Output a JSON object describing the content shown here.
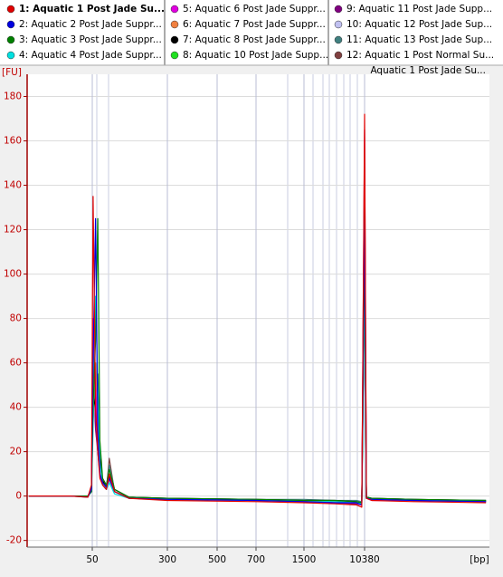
{
  "chart_data": {
    "type": "line",
    "sample_label": "Aquatic 1 Post Jade Su...",
    "y_label": "[FU]",
    "x_label": "[bp]",
    "x": [
      11,
      30,
      45,
      49,
      51,
      54,
      57,
      60,
      64,
      70,
      75,
      85,
      120,
      300,
      700,
      1500,
      4000,
      8000,
      9500,
      10380,
      11000,
      13000,
      50000,
      500000
    ],
    "xticks": [
      50,
      300,
      500,
      700,
      1500,
      10380
    ],
    "ylim": [
      -23,
      190
    ],
    "yticks": [
      -20,
      0,
      20,
      40,
      60,
      80,
      100,
      120,
      140,
      160,
      180
    ],
    "grid": true,
    "series": [
      {
        "name": "1: Aquatic 1 Post Jade Su...",
        "color": "#e00000",
        "values": [
          0,
          0,
          -0.5,
          5,
          135,
          40,
          20,
          8,
          5,
          3,
          10,
          2,
          -1,
          -2,
          -2.5,
          -3,
          -3.5,
          -4,
          -5,
          172,
          -1,
          -2,
          -2.5,
          -3
        ]
      },
      {
        "name": "2: Aquatic 2 Post Jade Suppr...",
        "color": "#0000e0",
        "values": [
          0,
          0,
          -0.5,
          3,
          60,
          125,
          30,
          10,
          6,
          4,
          8,
          2,
          -1,
          -1.5,
          -2,
          -2.5,
          -3,
          -3,
          -4,
          130,
          -1,
          -1.5,
          -2,
          -2.5
        ]
      },
      {
        "name": "3: Aquatic 3 Post Jade Suppr...",
        "color": "#008000",
        "values": [
          0,
          0,
          0,
          2,
          40,
          70,
          125,
          25,
          8,
          5,
          12,
          3,
          -0.5,
          -1,
          -1.5,
          -2,
          -2,
          -2.5,
          -3,
          115,
          -0.5,
          -1,
          -1.5,
          -2
        ]
      },
      {
        "name": "4: Aquatic 4 Post Jade Suppr...",
        "color": "#00e0e0",
        "values": [
          0,
          0,
          0,
          2,
          30,
          90,
          50,
          15,
          5,
          3,
          6,
          1,
          -1,
          -1.5,
          -2,
          -2,
          -2.5,
          -3,
          -3.5,
          95,
          -1,
          -1.5,
          -2,
          -2
        ]
      },
      {
        "name": "5: Aquatic 6 Post Jade Suppr...",
        "color": "#e000e0",
        "values": [
          0,
          0,
          0,
          3,
          80,
          50,
          22,
          10,
          5,
          3,
          8,
          2,
          -1,
          -1.5,
          -2,
          -2.5,
          -3,
          -3,
          -4,
          140,
          -1,
          -2,
          -2,
          -2.5
        ]
      },
      {
        "name": "6: Aquatic 7 Post Jade Suppr...",
        "color": "#f08040",
        "values": [
          0,
          0,
          0,
          2,
          50,
          60,
          35,
          12,
          6,
          4,
          7,
          2,
          -1,
          -1.5,
          -2,
          -2,
          -2.5,
          -3,
          -3.5,
          110,
          -1,
          -1.5,
          -2,
          -2
        ]
      },
      {
        "name": "7: Aquatic 8 Post Jade Suppr...",
        "color": "#000000",
        "values": [
          0,
          0,
          0,
          2,
          45,
          40,
          55,
          18,
          7,
          4,
          9,
          3,
          -0.5,
          -1,
          -1.5,
          -2,
          -2,
          -2.5,
          -3,
          100,
          -0.5,
          -1,
          -1.5,
          -2
        ]
      },
      {
        "name": "8: Aquatic 10 Post Jade Supp...",
        "color": "#20e020",
        "values": [
          0,
          0,
          0,
          2,
          35,
          60,
          40,
          15,
          6,
          4,
          10,
          2,
          -1,
          -1.5,
          -2,
          -2.5,
          -2.5,
          -3,
          -3.5,
          105,
          -1,
          -1.5,
          -2,
          -2.5
        ]
      },
      {
        "name": "9: Aquatic 11 Post Jade Supp...",
        "color": "#800080",
        "values": [
          0,
          0,
          0,
          3,
          70,
          30,
          20,
          10,
          6,
          4,
          8,
          2,
          -1,
          -1.5,
          -2,
          -2.5,
          -3,
          -3.5,
          -4,
          165,
          -1,
          -1.5,
          -2,
          -2.5
        ]
      },
      {
        "name": "10: Aquatic 12 Post Jade Sup...",
        "color": "#c0c0f0",
        "values": [
          0,
          0,
          0,
          2,
          40,
          30,
          20,
          9,
          5,
          3,
          6,
          1,
          -1,
          -1.5,
          -2,
          -2,
          -2.5,
          -3,
          -3.5,
          95,
          -1,
          -1.5,
          -2,
          -2
        ]
      },
      {
        "name": "11: Aquatic 13 Post Jade Sup...",
        "color": "#408080",
        "values": [
          0,
          0,
          0,
          2,
          55,
          45,
          25,
          12,
          6,
          4,
          14,
          3,
          -0.5,
          -1,
          -1.5,
          -1.5,
          -2,
          -2,
          -2.5,
          120,
          -0.5,
          -1,
          -1.5,
          -2
        ]
      },
      {
        "name": "12: Aquatic 1 Post Normal Su...",
        "color": "#804040",
        "values": [
          0,
          0,
          0,
          3,
          60,
          50,
          28,
          10,
          5,
          3,
          17,
          2,
          -1,
          -1.5,
          -2,
          -2.5,
          -3,
          -3.5,
          -4,
          150,
          -1,
          -1.5,
          -2,
          -2.5
        ]
      }
    ]
  }
}
